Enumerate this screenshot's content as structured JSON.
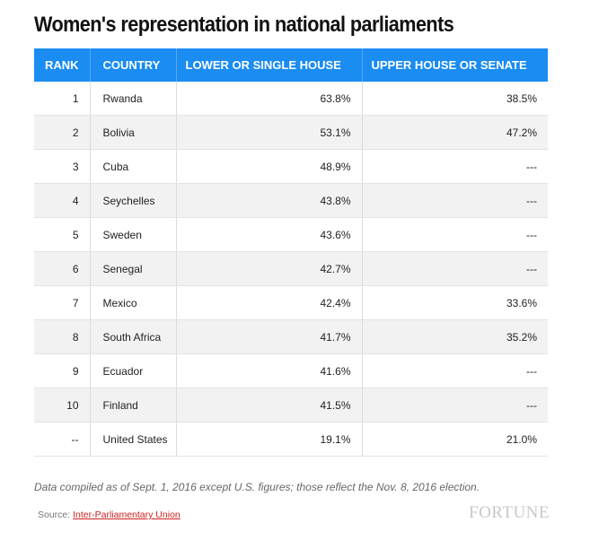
{
  "title": "Women's representation in national parliaments",
  "chart_data": {
    "type": "table",
    "columns": [
      "RANK",
      "COUNTRY",
      "LOWER OR SINGLE HOUSE",
      "UPPER HOUSE OR SENATE"
    ],
    "rows": [
      {
        "rank": "1",
        "country": "Rwanda",
        "lower": "63.8%",
        "upper": "38.5%"
      },
      {
        "rank": "2",
        "country": "Bolivia",
        "lower": "53.1%",
        "upper": "47.2%"
      },
      {
        "rank": "3",
        "country": "Cuba",
        "lower": "48.9%",
        "upper": "---"
      },
      {
        "rank": "4",
        "country": "Seychelles",
        "lower": "43.8%",
        "upper": "---"
      },
      {
        "rank": "5",
        "country": "Sweden",
        "lower": "43.6%",
        "upper": "---"
      },
      {
        "rank": "6",
        "country": "Senegal",
        "lower": "42.7%",
        "upper": "---"
      },
      {
        "rank": "7",
        "country": "Mexico",
        "lower": "42.4%",
        "upper": "33.6%"
      },
      {
        "rank": "8",
        "country": "South Africa",
        "lower": "41.7%",
        "upper": "35.2%"
      },
      {
        "rank": "9",
        "country": "Ecuador",
        "lower": "41.6%",
        "upper": "---"
      },
      {
        "rank": "10",
        "country": "Finland",
        "lower": "41.5%",
        "upper": "---"
      },
      {
        "rank": "--",
        "country": "United States",
        "lower": "19.1%",
        "upper": "21.0%"
      }
    ]
  },
  "note": "Data compiled as of Sept. 1, 2016 except U.S. figures; those reflect the Nov. 8, 2016 election.",
  "source": {
    "prefix": "Source: ",
    "link_text": "Inter-Parliamentary Union"
  },
  "logo": "FORTUNE",
  "colors": {
    "header_bg": "#1a8cf2",
    "header_text": "#ffffff",
    "stripe": "#f2f2f2",
    "link": "#cc1f1f"
  }
}
